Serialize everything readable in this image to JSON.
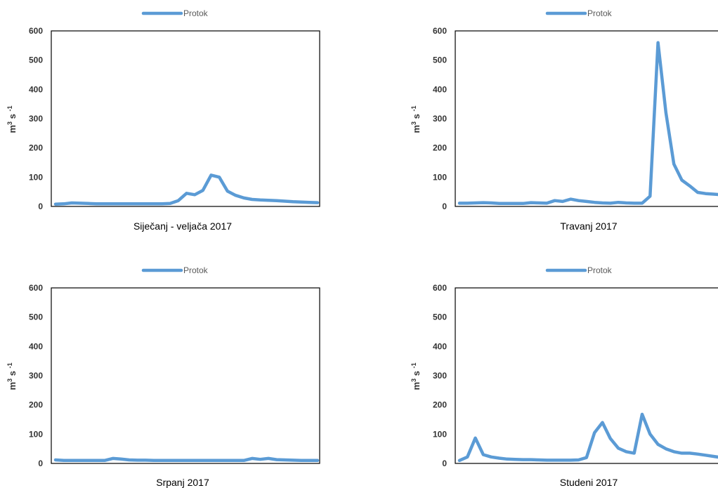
{
  "chart_data": [
    {
      "type": "line",
      "title": "",
      "xlabel": "Siječanj - veljača 2017",
      "ylabel": {
        "base": "m",
        "exp": "3",
        "rest": " s ",
        "rest_exp": "-1"
      },
      "ylim": [
        0,
        600
      ],
      "yticks": [
        "0",
        "100",
        "200",
        "300",
        "400",
        "500",
        "600"
      ],
      "legend": "top-center",
      "grid": false,
      "series": [
        {
          "name": "Protok",
          "color": "#5b9bd5",
          "values": [
            8,
            9,
            12,
            11,
            10,
            9,
            9,
            9,
            9,
            9,
            9,
            9,
            9,
            9,
            10,
            20,
            45,
            40,
            55,
            107,
            100,
            52,
            38,
            29,
            24,
            22,
            21,
            20,
            18,
            16,
            15,
            14,
            13
          ]
        }
      ]
    },
    {
      "type": "line",
      "title": "",
      "xlabel": "Travanj 2017",
      "ylabel": {
        "base": "m",
        "exp": "3",
        "rest": " s ",
        "rest_exp": "-1"
      },
      "ylim": [
        0,
        600
      ],
      "yticks": [
        "0",
        "100",
        "200",
        "300",
        "400",
        "500",
        "600"
      ],
      "legend": "top-center",
      "grid": false,
      "series": [
        {
          "name": "Protok",
          "color": "#5b9bd5",
          "values": [
            11,
            11,
            12,
            13,
            12,
            10,
            10,
            10,
            10,
            13,
            12,
            11,
            20,
            17,
            25,
            20,
            17,
            14,
            12,
            11,
            14,
            12,
            11,
            11,
            35,
            560,
            320,
            145,
            90,
            70,
            48,
            44,
            42,
            40
          ]
        }
      ]
    },
    {
      "type": "line",
      "title": "",
      "xlabel": "Srpanj 2017",
      "ylabel": {
        "base": "m",
        "exp": "3",
        "rest": " s ",
        "rest_exp": "-1"
      },
      "ylim": [
        0,
        600
      ],
      "yticks": [
        "0",
        "100",
        "200",
        "300",
        "400",
        "500",
        "600"
      ],
      "legend": "top-center",
      "grid": false,
      "series": [
        {
          "name": "Protok",
          "color": "#5b9bd5",
          "values": [
            12,
            10,
            10,
            10,
            10,
            10,
            10,
            17,
            15,
            12,
            11,
            11,
            10,
            10,
            10,
            10,
            10,
            10,
            10,
            10,
            10,
            10,
            10,
            10,
            17,
            14,
            17,
            13,
            12,
            11,
            10,
            10,
            10
          ]
        }
      ]
    },
    {
      "type": "line",
      "title": "",
      "xlabel": "Studeni 2017",
      "ylabel": {
        "base": "m",
        "exp": "3",
        "rest": " s ",
        "rest_exp": "-1"
      },
      "ylim": [
        0,
        600
      ],
      "yticks": [
        "0",
        "100",
        "200",
        "300",
        "400",
        "500",
        "600"
      ],
      "legend": "top-center",
      "grid": false,
      "series": [
        {
          "name": "Protok",
          "color": "#5b9bd5",
          "values": [
            10,
            22,
            87,
            30,
            22,
            18,
            15,
            14,
            13,
            13,
            12,
            11,
            11,
            11,
            11,
            12,
            20,
            105,
            140,
            85,
            52,
            40,
            35,
            168,
            100,
            65,
            50,
            40,
            35,
            35,
            32,
            28,
            24,
            20
          ]
        }
      ]
    }
  ]
}
